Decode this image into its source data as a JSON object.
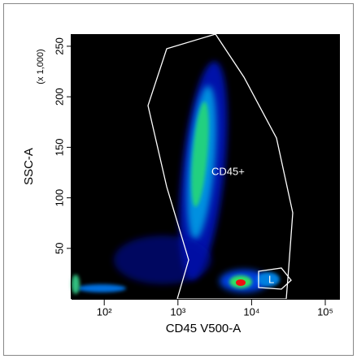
{
  "chart_data": {
    "type": "density",
    "xlabel": "CD45 V500-A",
    "ylabel": "SSC-A",
    "y_multiplier": "(x 1,000)",
    "xscale": "log",
    "xlim": [
      36,
      158000
    ],
    "xticks": [
      {
        "value": 100,
        "label": "10²"
      },
      {
        "value": 1000,
        "label": "10³"
      },
      {
        "value": 10000,
        "label": "10⁴"
      },
      {
        "value": 100000,
        "label": "10⁵"
      }
    ],
    "ylim": [
      0,
      262
    ],
    "yticks": [
      50,
      100,
      150,
      200,
      250
    ],
    "gates": [
      {
        "name": "CD45+"
      },
      {
        "name": "L"
      }
    ]
  }
}
